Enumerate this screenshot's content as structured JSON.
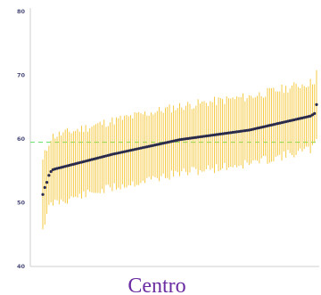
{
  "chart_data": {
    "type": "scatter",
    "subtype": "caterpillar",
    "xlabel": "Centro",
    "y_ticks": [
      "40",
      "50",
      "60",
      "70",
      "80"
    ],
    "ylim": [
      40,
      80
    ],
    "reference_line": {
      "value": 59.5,
      "color": "#6fe36f",
      "style": "dashed"
    },
    "colors": {
      "point": "#2a2a4a",
      "error_bar": "#f4c430",
      "axis": "#cfcfcf"
    },
    "grid": false,
    "point_count": 135,
    "rank": [
      1,
      135
    ],
    "estimates": {
      "first_points": [
        51.3,
        52.4,
        53.2,
        54.3,
        54.9,
        55.2,
        55.3
      ],
      "p25": 57.6,
      "median": 59.9,
      "p75": 61.4,
      "last_points": [
        63.6,
        63.8,
        64.0,
        65.4
      ]
    },
    "interval_halfwidth": [
      4.5,
      6.0
    ]
  }
}
